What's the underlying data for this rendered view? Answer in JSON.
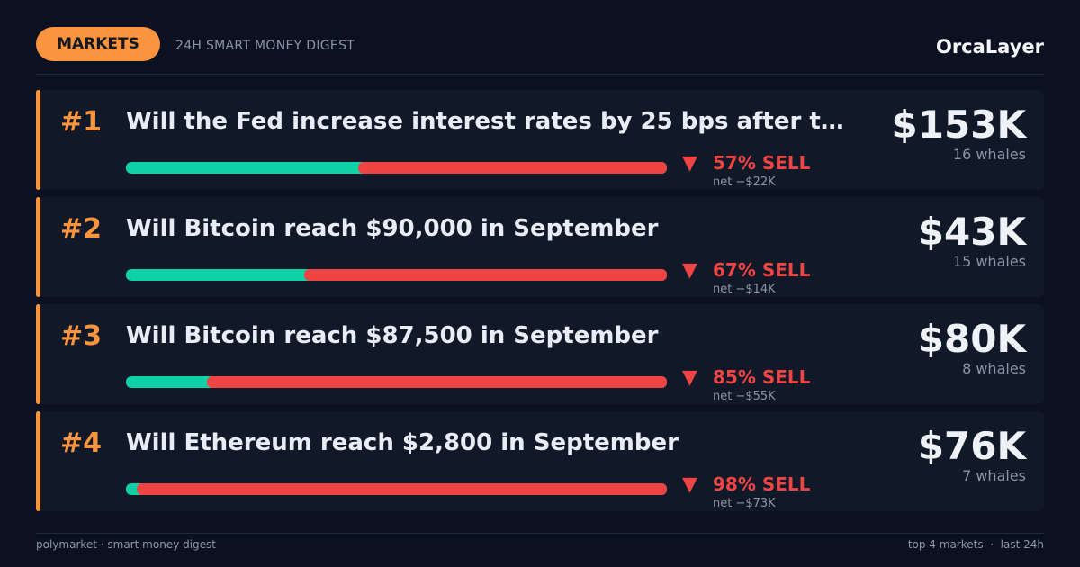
{
  "header": {
    "badge": "MARKETS",
    "subtitle": "24H SMART MONEY DIGEST",
    "brand": "OrcaLayer"
  },
  "markets": [
    {
      "rank": "#1",
      "title": "Will the Fed increase interest rates by 25 bps after t…",
      "sell_pct": 57,
      "sell_label": "57% SELL",
      "net": "net −$22K",
      "volume": "$153K",
      "whales": "16 whales"
    },
    {
      "rank": "#2",
      "title": "Will Bitcoin reach $90,000 in September",
      "sell_pct": 67,
      "sell_label": "67% SELL",
      "net": "net −$14K",
      "volume": "$43K",
      "whales": "15 whales"
    },
    {
      "rank": "#3",
      "title": "Will Bitcoin reach $87,500 in September",
      "sell_pct": 85,
      "sell_label": "85% SELL",
      "net": "net −$55K",
      "volume": "$80K",
      "whales": "8 whales"
    },
    {
      "rank": "#4",
      "title": "Will Ethereum reach $2,800 in September",
      "sell_pct": 98,
      "sell_label": "98% SELL",
      "net": "net −$73K",
      "volume": "$76K",
      "whales": "7 whales"
    }
  ],
  "footer": {
    "left": "polymarket · smart money digest",
    "right": "top 4 markets  ·  last 24h"
  }
}
